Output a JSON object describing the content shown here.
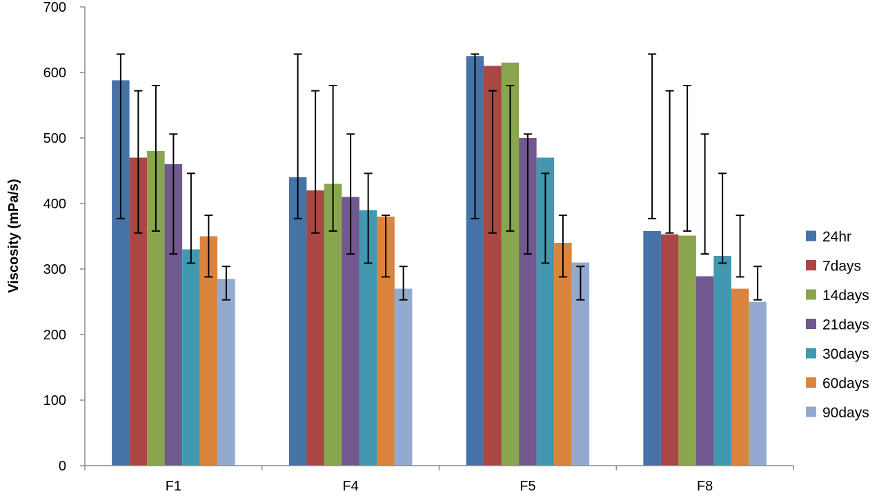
{
  "chart_data": {
    "type": "bar",
    "title": "",
    "xlabel": "",
    "ylabel": "Viscosity (mPa/s)",
    "ylim": [
      0,
      700
    ],
    "yticks": [
      0,
      100,
      200,
      300,
      400,
      500,
      600,
      700
    ],
    "grid": false,
    "legend_position": "right",
    "categories": [
      "F1",
      "F4",
      "F5",
      "F8"
    ],
    "series": [
      {
        "name": "24hr",
        "color": "#4572A7",
        "values": [
          588,
          440,
          625,
          358
        ],
        "error_low": [
          377,
          377,
          377,
          377
        ],
        "error_high": [
          628,
          628,
          628,
          628
        ]
      },
      {
        "name": "7days",
        "color": "#AA4643",
        "values": [
          470,
          420,
          610,
          353
        ],
        "error_low": [
          355,
          355,
          355,
          355
        ],
        "error_high": [
          572,
          572,
          572,
          572
        ]
      },
      {
        "name": "14days",
        "color": "#89A54E",
        "values": [
          480,
          430,
          615,
          351
        ],
        "error_low": [
          358,
          358,
          358,
          358
        ],
        "error_high": [
          580,
          580,
          580,
          580
        ]
      },
      {
        "name": "21days",
        "color": "#71588F",
        "values": [
          460,
          410,
          500,
          289
        ],
        "error_low": [
          323,
          323,
          323,
          323
        ],
        "error_high": [
          506,
          506,
          506,
          506
        ]
      },
      {
        "name": "30days",
        "color": "#4198AF",
        "values": [
          330,
          390,
          470,
          320
        ],
        "error_low": [
          309,
          309,
          309,
          309
        ],
        "error_high": [
          446,
          446,
          446,
          446
        ]
      },
      {
        "name": "60days",
        "color": "#DB843D",
        "values": [
          350,
          380,
          340,
          270
        ],
        "error_low": [
          288,
          288,
          288,
          288
        ],
        "error_high": [
          382,
          382,
          382,
          382
        ]
      },
      {
        "name": "90days",
        "color": "#93A9CF",
        "values": [
          285,
          270,
          310,
          250
        ],
        "error_low": [
          253,
          253,
          253,
          253
        ],
        "error_high": [
          304,
          304,
          304,
          304
        ]
      }
    ]
  }
}
